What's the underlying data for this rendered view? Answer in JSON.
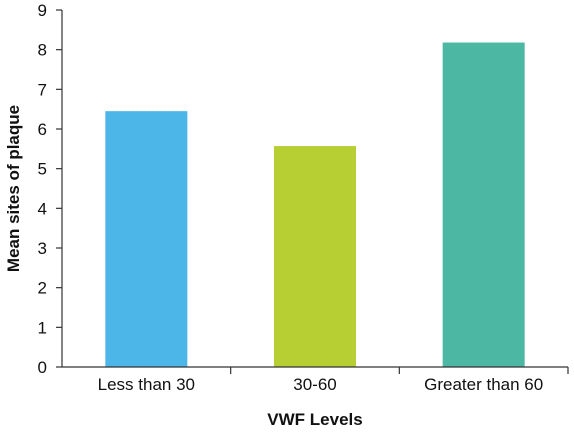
{
  "chart_data": {
    "type": "bar",
    "categories": [
      "Less than 30",
      "30-60",
      "Greater than 60"
    ],
    "values": [
      6.45,
      5.57,
      8.18
    ],
    "colors": [
      "#4db6e8",
      "#b8cf34",
      "#4cb8a4"
    ],
    "xlabel": "VWF Levels",
    "ylabel": "Mean sites of plaque",
    "ylim": [
      0,
      9
    ],
    "yticks": [
      "0",
      "1",
      "2",
      "3",
      "4",
      "5",
      "6",
      "7",
      "8",
      "9"
    ],
    "grid": false,
    "legend": "none"
  }
}
